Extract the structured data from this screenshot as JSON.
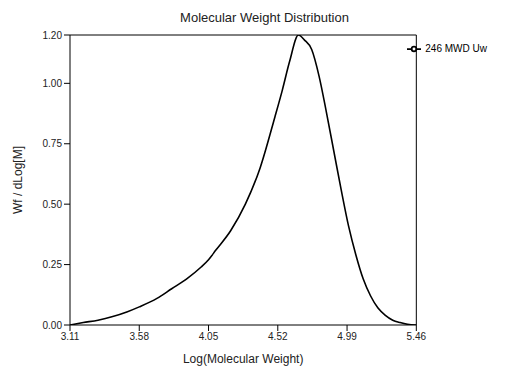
{
  "chart_data": {
    "type": "line",
    "title": "Molecular Weight Distribution",
    "x_label": "Log(Molecular Weight)",
    "y_label": "Wf / dLog[M]",
    "xlim": [
      3.11,
      5.46
    ],
    "xticks": [
      3.11,
      3.58,
      4.05,
      4.52,
      4.99,
      5.46
    ],
    "ylim": [
      0,
      1.2
    ],
    "yticks": [
      {
        "value": 0,
        "label": "0.00"
      },
      {
        "value": 0.25,
        "label": "0.25"
      },
      {
        "value": 0.5,
        "label": "0.50"
      },
      {
        "value": 0.75,
        "label": "0.75"
      },
      {
        "value": 1.0,
        "label": "1.00"
      },
      {
        "value": 1.2,
        "label": "1.20"
      }
    ],
    "grid": false,
    "legend": "top-right",
    "series": [
      {
        "name": "246 MWD Uw",
        "color": "#000000",
        "x": [
          3.11,
          3.2,
          3.3,
          3.4,
          3.5,
          3.58,
          3.7,
          3.8,
          3.9,
          4.0,
          4.05,
          4.1,
          4.2,
          4.3,
          4.4,
          4.5,
          4.55,
          4.6,
          4.66,
          4.7,
          4.75,
          4.8,
          4.85,
          4.9,
          4.95,
          5.0,
          5.05,
          5.1,
          5.15,
          5.2,
          5.25,
          5.3,
          5.35,
          5.4,
          5.46
        ],
        "values": [
          0.0,
          0.01,
          0.02,
          0.035,
          0.055,
          0.075,
          0.11,
          0.15,
          0.19,
          0.24,
          0.27,
          0.31,
          0.39,
          0.5,
          0.65,
          0.86,
          0.97,
          1.09,
          1.2,
          1.18,
          1.14,
          1.03,
          0.88,
          0.72,
          0.56,
          0.41,
          0.29,
          0.19,
          0.12,
          0.07,
          0.04,
          0.02,
          0.01,
          0.003,
          0.0
        ]
      }
    ]
  }
}
